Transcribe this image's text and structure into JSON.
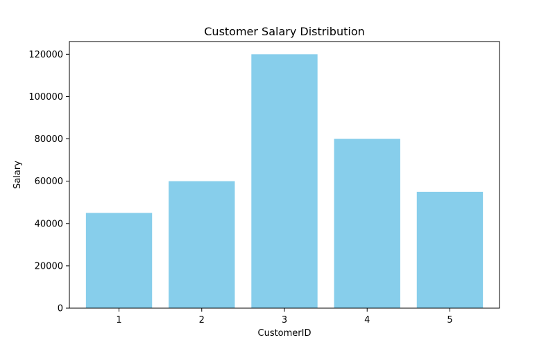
{
  "chart_data": {
    "type": "bar",
    "title": "Customer Salary Distribution",
    "xlabel": "CustomerID",
    "ylabel": "Salary",
    "categories": [
      "1",
      "2",
      "3",
      "4",
      "5"
    ],
    "values": [
      45000,
      60000,
      120000,
      80000,
      55000
    ],
    "ylim": [
      0,
      126000
    ],
    "yticks": [
      0,
      20000,
      40000,
      60000,
      80000,
      100000,
      120000
    ],
    "ytick_labels": [
      "0",
      "20000",
      "40000",
      "60000",
      "80000",
      "100000",
      "120000"
    ],
    "grid": false,
    "legend": "none",
    "bar_color": "#87ceeb"
  }
}
